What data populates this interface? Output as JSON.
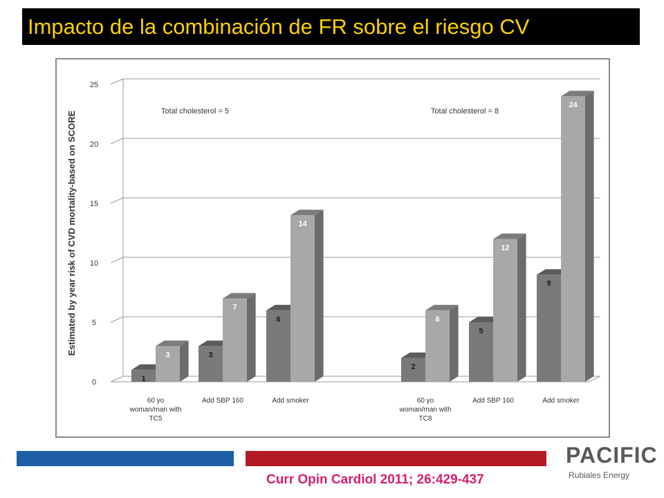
{
  "title": "Impacto de la combinación de FR sobre el riesgo CV",
  "citation": "Curr Opin Cardiol 2011; 26:429-437",
  "logo": {
    "name": "PACIFIC",
    "subtitle": "Rubiales Energy"
  },
  "colors": {
    "title_bg": "#000000",
    "title_text": "#ffd200",
    "bar_dark": "#7a7a7a",
    "bar_light": "#a8a8ab",
    "footer_blue": "#1f5fa6",
    "footer_red": "#b51b25",
    "citation": "#d6206e"
  },
  "chart_data": {
    "type": "bar",
    "ylabel": "Estimated by year risk of CVD mortality-based on SCORE",
    "ylim": [
      0,
      25
    ],
    "yticks": [
      0,
      5,
      10,
      15,
      20,
      25
    ],
    "grid": true,
    "groups": [
      {
        "annotation": "Total cholesterol = 5",
        "categories": [
          {
            "label": "60 yo woman/man with TC5",
            "label_lines": [
              "60 yo",
              "woman/man with",
              "TC5"
            ],
            "values": [
              1,
              3
            ]
          },
          {
            "label": "Add SBP 160",
            "label_lines": [
              "Add SBP 160"
            ],
            "values": [
              3,
              7
            ]
          },
          {
            "label": "Add smoker",
            "label_lines": [
              "Add smoker"
            ],
            "values": [
              6,
              14
            ]
          }
        ]
      },
      {
        "annotation": "Total cholesterol = 8",
        "categories": [
          {
            "label": "60 yo woman/man with TC8",
            "label_lines": [
              "60 yo",
              "woman/man with",
              "TC8"
            ],
            "values": [
              2,
              6
            ]
          },
          {
            "label": "Add SBP 160",
            "label_lines": [
              "Add SBP 160"
            ],
            "values": [
              5,
              12
            ]
          },
          {
            "label": "Add smoker",
            "label_lines": [
              "Add smoker"
            ],
            "values": [
              9,
              24
            ]
          }
        ]
      }
    ]
  }
}
